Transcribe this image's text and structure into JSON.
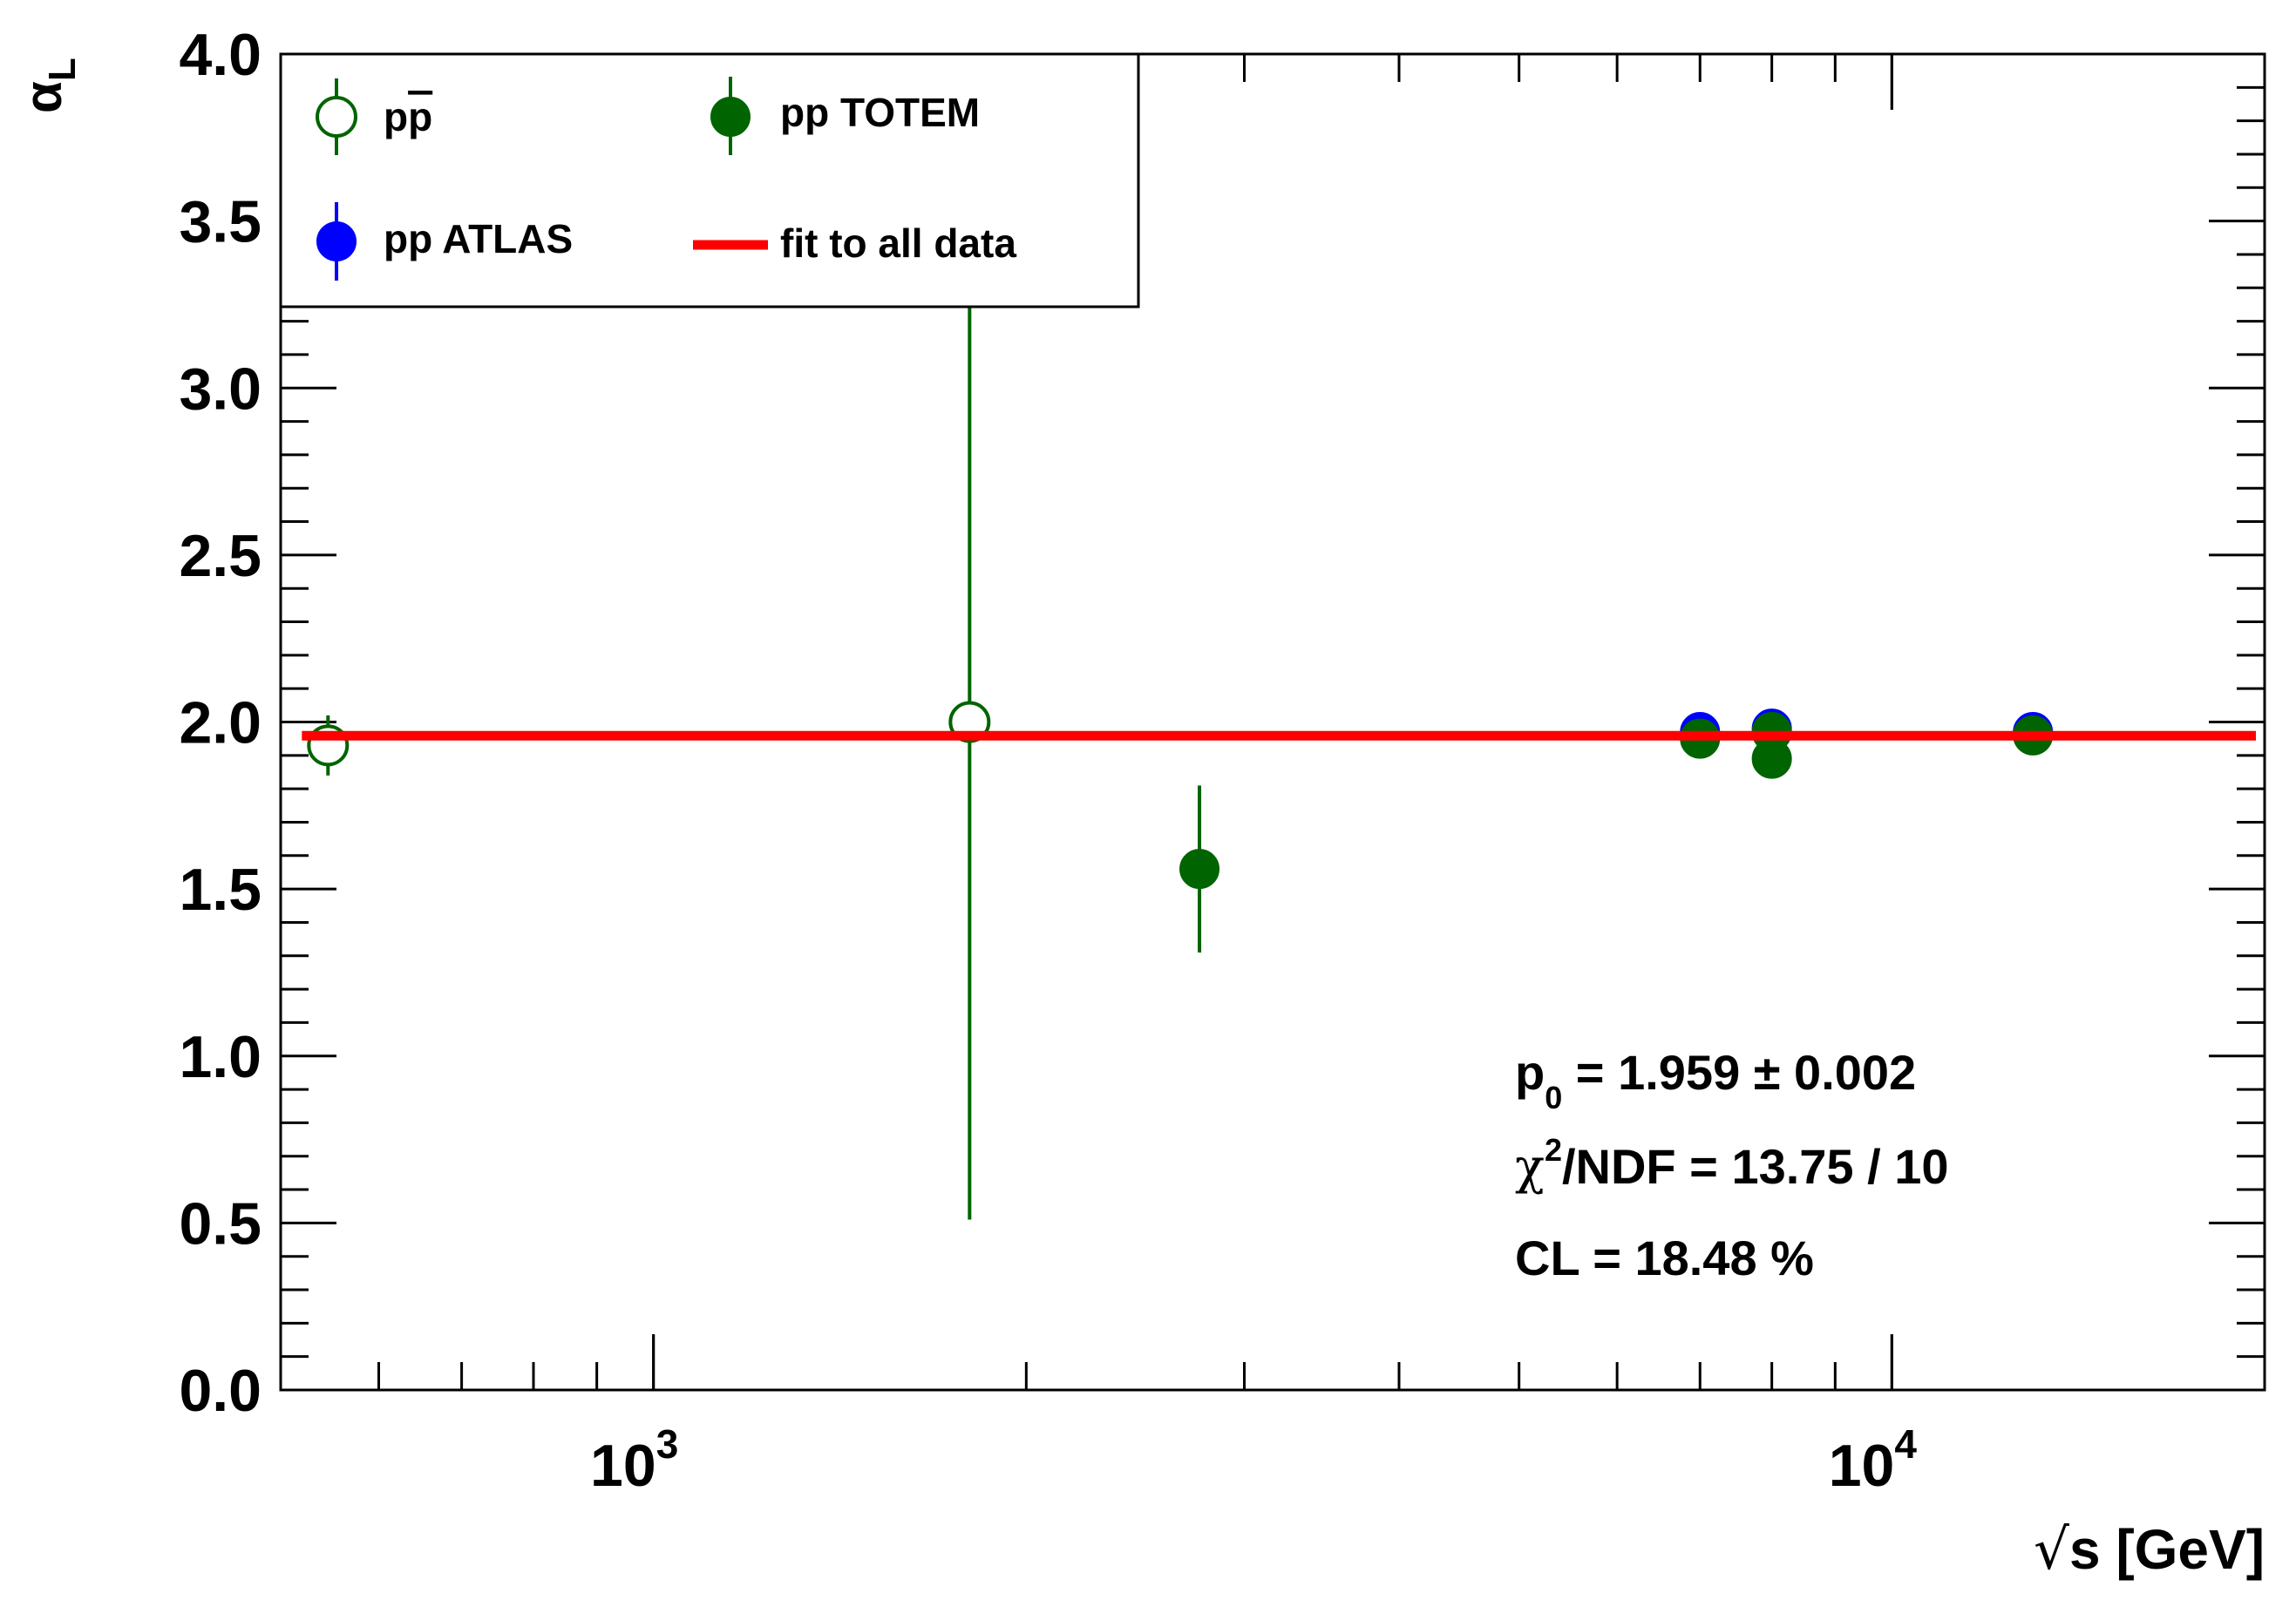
{
  "chart_data": {
    "type": "scatter",
    "xlabel_prefix": "√",
    "xlabel_main": "s [GeV]",
    "ylabel": "α",
    "ylabel_sub": "L",
    "x_scale": "log",
    "xlim": [
      500,
      20000
    ],
    "ylim": [
      0.0,
      4.0
    ],
    "y_ticks": [
      "0.0",
      "0.5",
      "1.0",
      "1.5",
      "2.0",
      "2.5",
      "3.0",
      "3.5",
      "4.0"
    ],
    "x_ticks": [
      {
        "value": 1000,
        "base": "10",
        "exp": "3"
      },
      {
        "value": 10000,
        "base": "10",
        "exp": "4"
      }
    ],
    "grid": false,
    "legend_position": "top-left",
    "legend": [
      {
        "label": "pp",
        "bar_label": "p",
        "marker": "open-circle",
        "color": "#006400"
      },
      {
        "label": "pp TOTEM",
        "marker": "filled-circle",
        "color": "#006400"
      },
      {
        "label": "pp ATLAS",
        "marker": "filled-circle",
        "color": "#0000ff"
      },
      {
        "label": "fit to all data",
        "marker": "line",
        "color": "#ff0000"
      }
    ],
    "series": [
      {
        "name": "pp̄",
        "marker": "open-circle",
        "color": "#006400",
        "points": [
          {
            "x": 546,
            "y": 1.93,
            "err": 0.09
          },
          {
            "x": 1800,
            "y": 2.0,
            "err": 1.49
          }
        ]
      },
      {
        "name": "pp ATLAS",
        "marker": "filled-circle",
        "color": "#0000ff",
        "points": [
          {
            "x": 7000,
            "y": 1.97,
            "err": 0.01
          },
          {
            "x": 8000,
            "y": 1.98,
            "err": 0.01
          },
          {
            "x": 13000,
            "y": 1.97,
            "err": 0.01
          }
        ]
      },
      {
        "name": "pp TOTEM",
        "marker": "filled-circle",
        "color": "#006400",
        "points": [
          {
            "x": 2760,
            "y": 1.56,
            "err": 0.25
          },
          {
            "x": 7000,
            "y": 1.95,
            "err": 0.01
          },
          {
            "x": 8000,
            "y": 1.97,
            "err": 0.01
          },
          {
            "x": 8000,
            "y": 1.89,
            "err": 0.01
          },
          {
            "x": 13000,
            "y": 1.96,
            "err": 0.01
          }
        ]
      }
    ],
    "fit": {
      "name": "fit to all data",
      "value": 1.959,
      "color": "#ff0000"
    },
    "annotations": {
      "p0_name": "p",
      "p0_sub": "0",
      "p0_rest": " = 1.959 ± 0.002",
      "chi2_name": "χ",
      "chi2_sup": "2",
      "chi2_rest": "/NDF = 13.75 / 10",
      "cl": "CL = 18.48 %"
    }
  }
}
